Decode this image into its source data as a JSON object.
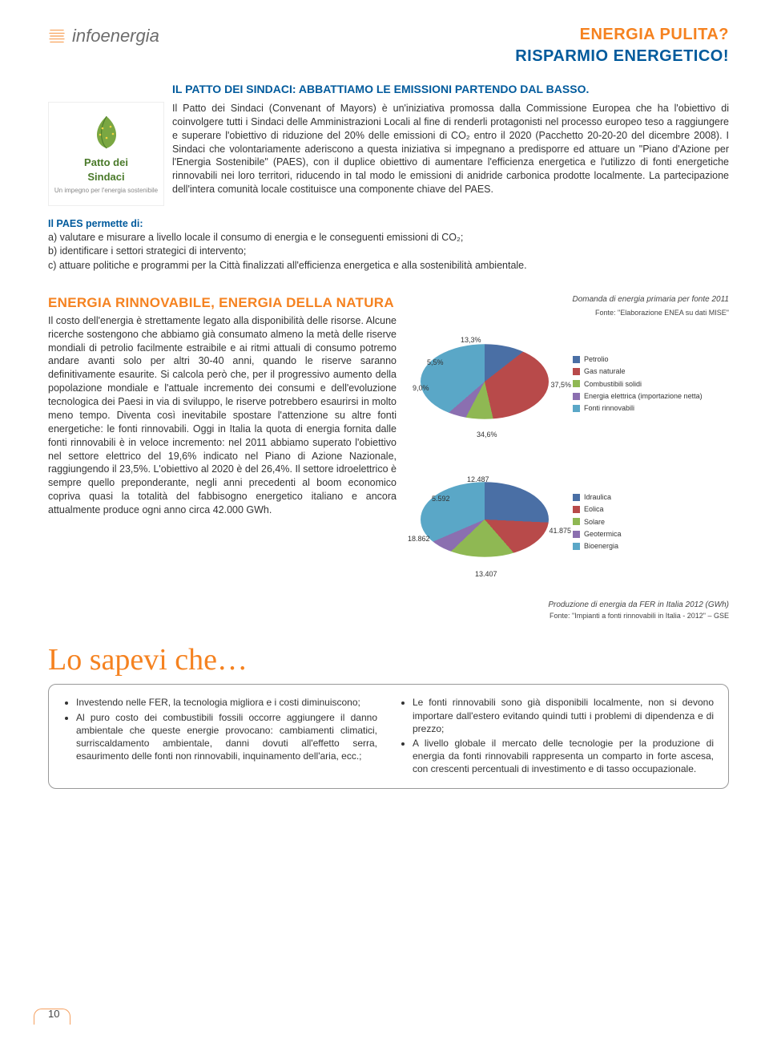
{
  "header": {
    "brand": "infoenergia",
    "line1": "ENERGIA PULITA?",
    "line2": "RISPARMIO ENERGETICO!"
  },
  "article": {
    "title": "IL PATTO DEI SINDACI: ABBATTIAMO LE EMISSIONI PARTENDO DAL BASSO.",
    "logo_line1": "Patto dei",
    "logo_line2": "Sindaci",
    "logo_sub": "Un impegno per l'energia sostenibile",
    "body": "Il Patto dei Sindaci (Convenant of Mayors) è un'iniziativa promossa dalla Commissione Europea che ha l'obiettivo di coinvolgere tutti i Sindaci delle Amministrazioni Locali al fine di renderli protagonisti nel processo europeo teso a raggiungere e superare l'obiettivo di riduzione del 20% delle emissioni di CO₂ entro il 2020 (Pacchetto 20-20-20 del dicembre 2008). I Sindaci che volontariamente aderiscono a questa iniziativa si impegnano a predisporre ed attuare un \"Piano d'Azione per l'Energia Sostenibile\" (PAES), con il duplice obiettivo di aumentare l'efficienza energetica e l'utilizzo di fonti energetiche rinnovabili nei loro territori, riducendo in tal modo le emissioni di anidride carbonica prodotte localmente. La partecipazione dell'intera comunità locale costituisce una componente chiave del PAES.",
    "paes_title": "Il PAES permette di:",
    "paes_a": "a) valutare e misurare a livello locale il consumo di energia e le conseguenti emissioni di CO₂;",
    "paes_b": "b) identificare i settori strategici di intervento;",
    "paes_c": "c) attuare politiche e programmi per la Città finalizzati all'efficienza energetica e alla sostenibilità ambientale."
  },
  "section2": {
    "title": "ENERGIA RINNOVABILE, ENERGIA DELLA NATURA",
    "body": "Il costo dell'energia è strettamente legato alla disponibilità delle risorse. Alcune ricerche sostengono che abbiamo già consumato almeno la metà delle riserve mondiali di petrolio facilmente estraibile e ai ritmi attuali di consumo potremo andare avanti solo per altri 30-40 anni, quando le riserve saranno definitivamente esaurite. Si calcola però che, per il progressivo aumento della popolazione mondiale e l'attuale incremento dei consumi e dell'evoluzione tecnologica dei Paesi in via di sviluppo, le riserve potrebbero esaurirsi in molto meno tempo. Diventa così inevitabile spostare l'attenzione su altre fonti energetiche: le fonti rinnovabili. Oggi in Italia la quota di energia fornita dalle fonti rinnovabili è in veloce incremento: nel 2011 abbiamo superato l'obiettivo nel settore elettrico del 19,6% indicato nel Piano di Azione Nazionale, raggiungendo il 23,5%. L'obiettivo al 2020 è del 26,4%. Il settore idroelettrico è sempre quello preponderante, negli anni precedenti al boom economico copriva quasi la totalità del fabbisogno energetico italiano e ancora attualmente produce ogni anno circa 42.000 GWh."
  },
  "chart1": {
    "type": "pie",
    "caption": "Domanda di energia primaria per fonte 2011",
    "source": "Fonte: \"Elaborazione ENEA su dati MISE\"",
    "slices": [
      {
        "label": "Petrolio",
        "value": 37.5,
        "color": "#4a6fa5"
      },
      {
        "label": "Gas naturale",
        "value": 34.6,
        "color": "#b84a4a"
      },
      {
        "label": "Combustibili solidi",
        "value": 9.0,
        "color": "#8fb853"
      },
      {
        "label": "Energia elettrica (importazione netta)",
        "value": 5.5,
        "color": "#8b6fb0"
      },
      {
        "label": "Fonti rinnovabili",
        "value": 13.3,
        "color": "#5aa7c7"
      }
    ],
    "labels": {
      "p1": "37,5%",
      "p2": "34,6%",
      "p3": "9,0%",
      "p4": "5,5%",
      "p5": "13,3%"
    }
  },
  "chart2": {
    "type": "pie",
    "caption": "Produzione di energia da FER in Italia 2012 (GWh)",
    "source": "Fonte: \"Impianti a fonti rinnovabili in Italia - 2012\" – GSE",
    "slices": [
      {
        "label": "Idraulica",
        "value": 41875,
        "color": "#4a6fa5"
      },
      {
        "label": "Eolica",
        "value": 13407,
        "color": "#b84a4a"
      },
      {
        "label": "Solare",
        "value": 18862,
        "color": "#8fb853"
      },
      {
        "label": "Geotermica",
        "value": 5592,
        "color": "#8b6fb0"
      },
      {
        "label": "Bioenergia",
        "value": 12487,
        "color": "#5aa7c7"
      }
    ],
    "labels": {
      "v1": "41.875",
      "v2": "13.407",
      "v3": "18.862",
      "v4": "5.592",
      "v5": "12.487"
    }
  },
  "knowbox": {
    "title": "Lo sapevi che…",
    "left": [
      "Investendo nelle FER, la tecnologia migliora e i costi diminuiscono;",
      "Al puro costo dei combustibili fossili occorre aggiungere il danno ambientale che queste energie provocano: cambiamenti climatici, surriscaldamento ambientale, danni dovuti all'effetto serra, esaurimento delle fonti non rinnovabili, inquinamento dell'aria, ecc.;"
    ],
    "right": [
      "Le fonti rinnovabili sono già disponibili localmente, non si devono importare dall'estero evitando quindi tutti i problemi di dipendenza e di prezzo;",
      "A livello globale il mercato delle tecnologie per la produzione di energia da fonti rinnovabili rappresenta un comparto in forte ascesa, con crescenti percentuali di investimento e di tasso occupazionale."
    ]
  },
  "page_number": "10",
  "colors": {
    "orange": "#f58220",
    "blue": "#005a9c",
    "gray_text": "#6d6d6d"
  }
}
